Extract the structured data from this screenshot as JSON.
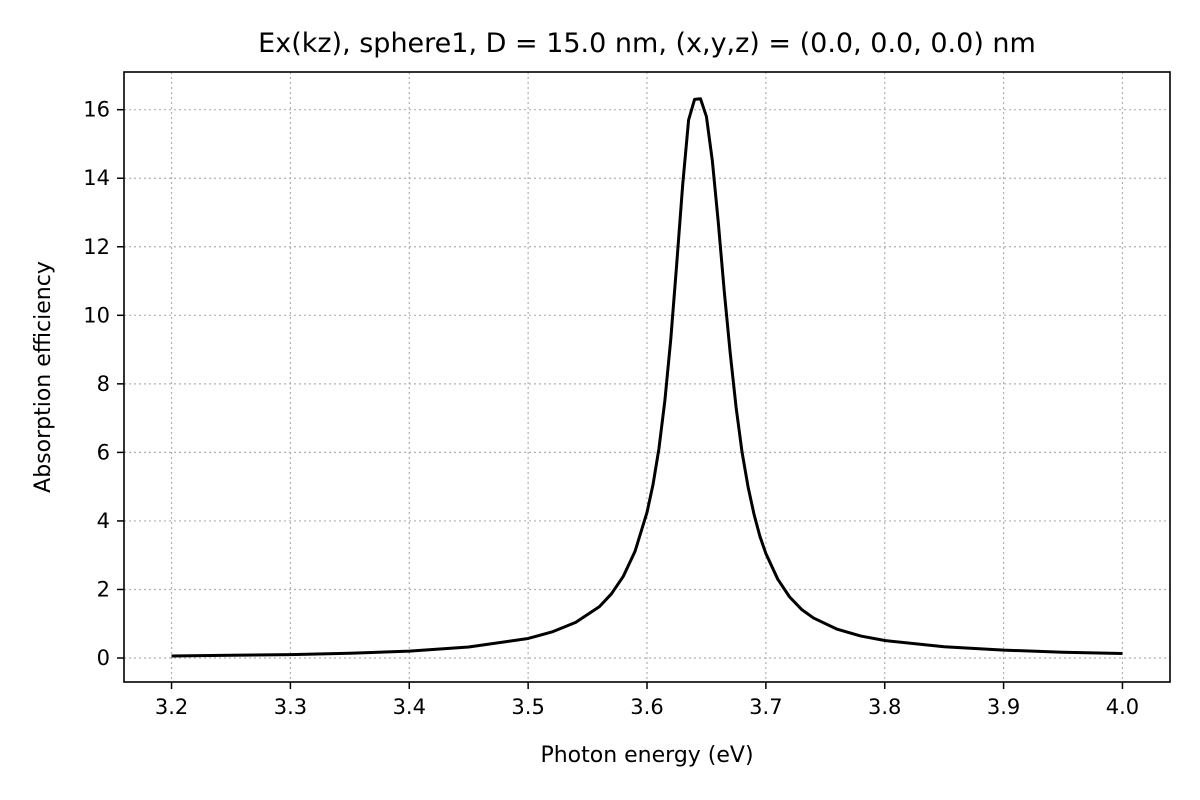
{
  "chart_data": {
    "type": "line",
    "title": "Ex(kz), sphere1, D = 15.0 nm, (x,y,z) = (0.0, 0.0, 0.0) nm",
    "xlabel": "Photon energy (eV)",
    "ylabel": "Absorption efficiency",
    "xlim": [
      3.16,
      4.04
    ],
    "ylim": [
      -0.7,
      17.1
    ],
    "xticks": [
      3.2,
      3.3,
      3.4,
      3.5,
      3.6,
      3.7,
      3.8,
      3.9,
      4.0
    ],
    "xtick_labels": [
      "3.2",
      "3.3",
      "3.4",
      "3.5",
      "3.6",
      "3.7",
      "3.8",
      "3.9",
      "4.0"
    ],
    "yticks": [
      0,
      2,
      4,
      6,
      8,
      10,
      12,
      14,
      16
    ],
    "ytick_labels": [
      "0",
      "2",
      "4",
      "6",
      "8",
      "10",
      "12",
      "14",
      "16"
    ],
    "grid": true,
    "series": [
      {
        "color": "#000000",
        "x": [
          3.2,
          3.25,
          3.3,
          3.35,
          3.4,
          3.45,
          3.5,
          3.52,
          3.54,
          3.56,
          3.57,
          3.58,
          3.59,
          3.6,
          3.605,
          3.61,
          3.615,
          3.62,
          3.625,
          3.63,
          3.635,
          3.64,
          3.645,
          3.65,
          3.655,
          3.66,
          3.665,
          3.67,
          3.675,
          3.68,
          3.685,
          3.69,
          3.695,
          3.7,
          3.71,
          3.72,
          3.73,
          3.74,
          3.76,
          3.78,
          3.8,
          3.85,
          3.9,
          3.95,
          4.0
        ],
        "y": [
          0.06,
          0.08,
          0.1,
          0.14,
          0.2,
          0.32,
          0.57,
          0.76,
          1.04,
          1.5,
          1.87,
          2.38,
          3.12,
          4.25,
          5.05,
          6.1,
          7.5,
          9.3,
          11.5,
          13.8,
          15.7,
          16.3,
          16.32,
          15.8,
          14.5,
          12.7,
          10.7,
          8.9,
          7.3,
          6.0,
          5.0,
          4.2,
          3.55,
          3.05,
          2.3,
          1.78,
          1.42,
          1.17,
          0.84,
          0.64,
          0.51,
          0.33,
          0.23,
          0.17,
          0.13
        ]
      }
    ]
  }
}
